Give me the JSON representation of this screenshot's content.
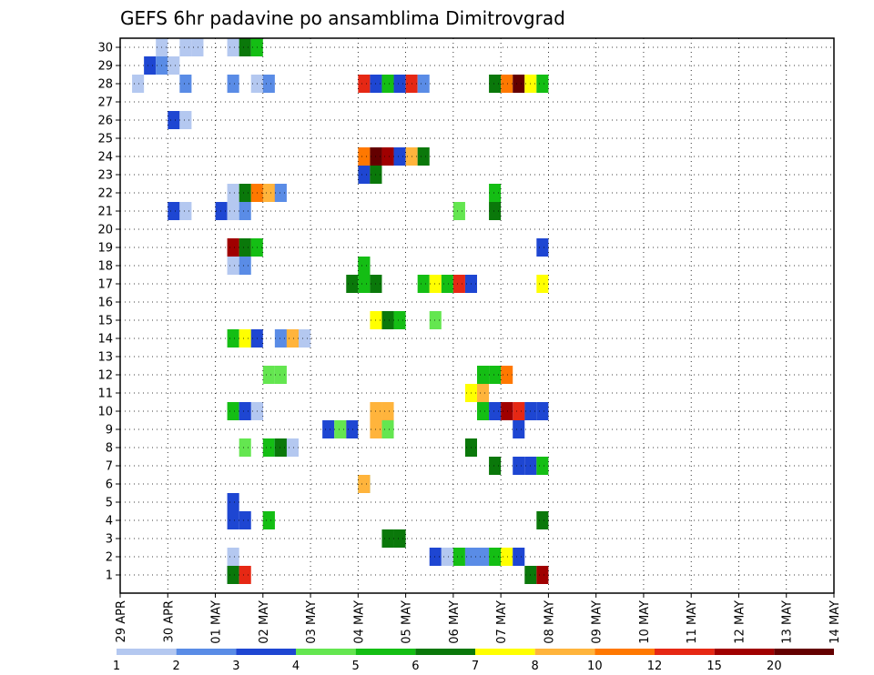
{
  "chart_data": {
    "type": "heatmap",
    "title": "GEFS 6hr padavine po ansamblima Dimitrovgrad",
    "x_tick_labels": [
      "29 APR",
      "30 APR",
      "01 MAY",
      "02 MAY",
      "03 MAY",
      "04 MAY",
      "05 MAY",
      "06 MAY",
      "07 MAY",
      "08 MAY",
      "09 MAY",
      "10 MAY",
      "11 MAY",
      "12 MAY",
      "13 MAY",
      "14 MAY"
    ],
    "y_members": [
      1,
      2,
      3,
      4,
      5,
      6,
      7,
      8,
      9,
      10,
      11,
      12,
      13,
      14,
      15,
      16,
      17,
      18,
      19,
      20,
      21,
      22,
      23,
      24,
      25,
      26,
      27,
      28,
      29,
      30
    ],
    "time_steps_per_day": 4,
    "grid": true,
    "legend": {
      "placement": "bottom",
      "labels": [
        "1",
        "2",
        "3",
        "4",
        "5",
        "6",
        "7",
        "8",
        "10",
        "12",
        "15",
        "20"
      ],
      "colors": [
        "#b4c8f0",
        "#5a8ce6",
        "#1e46d2",
        "#64e650",
        "#14be14",
        "#0a780a",
        "#ffff00",
        "#ffb43c",
        "#ff7800",
        "#e62814",
        "#a00000",
        "#640000"
      ]
    },
    "precip_cells": [
      {
        "step": 3,
        "member": 30,
        "level": 1
      },
      {
        "step": 5,
        "member": 30,
        "level": 1
      },
      {
        "step": 6,
        "member": 30,
        "level": 1
      },
      {
        "step": 9,
        "member": 30,
        "level": 1
      },
      {
        "step": 10,
        "member": 30,
        "level": 1
      },
      {
        "step": 10,
        "member": 30,
        "level": 6
      },
      {
        "step": 11,
        "member": 30,
        "level": 5
      },
      {
        "step": 2,
        "member": 29,
        "level": 3
      },
      {
        "step": 3,
        "member": 29,
        "level": 2
      },
      {
        "step": 4,
        "member": 29,
        "level": 1
      },
      {
        "step": 1,
        "member": 28,
        "level": 1
      },
      {
        "step": 5,
        "member": 28,
        "level": 2
      },
      {
        "step": 9,
        "member": 28,
        "level": 2
      },
      {
        "step": 11,
        "member": 28,
        "level": 1
      },
      {
        "step": 12,
        "member": 28,
        "level": 2
      },
      {
        "step": 4,
        "member": 26,
        "level": 3
      },
      {
        "step": 5,
        "member": 26,
        "level": 1
      },
      {
        "step": 4,
        "member": 21,
        "level": 3
      },
      {
        "step": 5,
        "member": 21,
        "level": 1
      },
      {
        "step": 9,
        "member": 22,
        "level": 1
      },
      {
        "step": 10,
        "member": 22,
        "level": 6
      },
      {
        "step": 11,
        "member": 22,
        "level": 5
      },
      {
        "step": 11,
        "member": 22,
        "level": 9
      },
      {
        "step": 12,
        "member": 22,
        "level": 10
      },
      {
        "step": 12,
        "member": 22,
        "level": 8
      },
      {
        "step": 13,
        "member": 22,
        "level": 2
      },
      {
        "step": 8,
        "member": 21,
        "level": 3
      },
      {
        "step": 9,
        "member": 21,
        "level": 1
      },
      {
        "step": 10,
        "member": 21,
        "level": 2
      },
      {
        "step": 9,
        "member": 19,
        "level": 11
      },
      {
        "step": 10,
        "member": 19,
        "level": 10
      },
      {
        "step": 10,
        "member": 19,
        "level": 6
      },
      {
        "step": 11,
        "member": 19,
        "level": 5
      },
      {
        "step": 9,
        "member": 18,
        "level": 1
      },
      {
        "step": 10,
        "member": 18,
        "level": 2
      },
      {
        "step": 9,
        "member": 14,
        "level": 5
      },
      {
        "step": 10,
        "member": 14,
        "level": 1
      },
      {
        "step": 10,
        "member": 14,
        "level": 7
      },
      {
        "step": 11,
        "member": 14,
        "level": 3
      },
      {
        "step": 13,
        "member": 14,
        "level": 2
      },
      {
        "step": 14,
        "member": 14,
        "level": 9
      },
      {
        "step": 14,
        "member": 14,
        "level": 8
      },
      {
        "step": 15,
        "member": 14,
        "level": 3
      },
      {
        "step": 15,
        "member": 14,
        "level": 1
      },
      {
        "step": 12,
        "member": 12,
        "level": 4
      },
      {
        "step": 13,
        "member": 12,
        "level": 4
      },
      {
        "step": 9,
        "member": 10,
        "level": 5
      },
      {
        "step": 10,
        "member": 10,
        "level": 2
      },
      {
        "step": 10,
        "member": 10,
        "level": 3
      },
      {
        "step": 11,
        "member": 10,
        "level": 3
      },
      {
        "step": 11,
        "member": 10,
        "level": 1
      },
      {
        "step": 10,
        "member": 8,
        "level": 4
      },
      {
        "step": 12,
        "member": 8,
        "level": 5
      },
      {
        "step": 13,
        "member": 8,
        "level": 3
      },
      {
        "step": 13,
        "member": 8,
        "level": 6
      },
      {
        "step": 14,
        "member": 8,
        "level": 1
      },
      {
        "step": 9,
        "member": 5,
        "level": 3
      },
      {
        "step": 9,
        "member": 4,
        "level": 3
      },
      {
        "step": 10,
        "member": 4,
        "level": 3
      },
      {
        "step": 12,
        "member": 4,
        "level": 4
      },
      {
        "step": 12,
        "member": 4,
        "level": 5
      },
      {
        "step": 9,
        "member": 2,
        "level": 1
      },
      {
        "step": 9,
        "member": 1,
        "level": 3
      },
      {
        "step": 9,
        "member": 1,
        "level": 6
      },
      {
        "step": 10,
        "member": 1,
        "level": 10
      },
      {
        "step": 17,
        "member": 9,
        "level": 3
      },
      {
        "step": 18,
        "member": 9,
        "level": 4
      },
      {
        "step": 19,
        "member": 9,
        "level": 7
      },
      {
        "step": 19,
        "member": 9,
        "level": 3
      },
      {
        "step": 20,
        "member": 6,
        "level": 6
      },
      {
        "step": 20,
        "member": 6,
        "level": 8
      },
      {
        "step": 19,
        "member": 17,
        "level": 6
      },
      {
        "step": 20,
        "member": 17,
        "level": 5
      },
      {
        "step": 21,
        "member": 17,
        "level": 6
      },
      {
        "step": 20,
        "member": 18,
        "level": 6
      },
      {
        "step": 20,
        "member": 18,
        "level": 5
      },
      {
        "step": 20,
        "member": 23,
        "level": 7
      },
      {
        "step": 20,
        "member": 23,
        "level": 3
      },
      {
        "step": 21,
        "member": 23,
        "level": 6
      },
      {
        "step": 20,
        "member": 24,
        "level": 9
      },
      {
        "step": 21,
        "member": 24,
        "level": 12
      },
      {
        "step": 22,
        "member": 24,
        "level": 11
      },
      {
        "step": 23,
        "member": 24,
        "level": 3
      },
      {
        "step": 24,
        "member": 24,
        "level": 8
      },
      {
        "step": 25,
        "member": 24,
        "level": 6
      },
      {
        "step": 20,
        "member": 28,
        "level": 10
      },
      {
        "step": 21,
        "member": 28,
        "level": 3
      },
      {
        "step": 22,
        "member": 28,
        "level": 5
      },
      {
        "step": 23,
        "member": 28,
        "level": 3
      },
      {
        "step": 24,
        "member": 28,
        "level": 10
      },
      {
        "step": 25,
        "member": 28,
        "level": 2
      },
      {
        "step": 25,
        "member": 17,
        "level": 5
      },
      {
        "step": 26,
        "member": 17,
        "level": 7
      },
      {
        "step": 27,
        "member": 17,
        "level": 5
      },
      {
        "step": 28,
        "member": 17,
        "level": 10
      },
      {
        "step": 29,
        "member": 17,
        "level": 3
      },
      {
        "step": 21,
        "member": 15,
        "level": 7
      },
      {
        "step": 22,
        "member": 15,
        "level": 6
      },
      {
        "step": 23,
        "member": 15,
        "level": 5
      },
      {
        "step": 26,
        "member": 15,
        "level": 4
      },
      {
        "step": 21,
        "member": 10,
        "level": 8
      },
      {
        "step": 22,
        "member": 10,
        "level": 8
      },
      {
        "step": 21,
        "member": 9,
        "level": 8
      },
      {
        "step": 22,
        "member": 9,
        "level": 4
      },
      {
        "step": 22,
        "member": 3,
        "level": 6
      },
      {
        "step": 23,
        "member": 3,
        "level": 6
      },
      {
        "step": 31,
        "member": 28,
        "level": 6
      },
      {
        "step": 32,
        "member": 28,
        "level": 9
      },
      {
        "step": 33,
        "member": 28,
        "level": 12
      },
      {
        "step": 34,
        "member": 28,
        "level": 7
      },
      {
        "step": 35,
        "member": 28,
        "level": 5
      },
      {
        "step": 29,
        "member": 11,
        "level": 7
      },
      {
        "step": 30,
        "member": 11,
        "level": 8
      },
      {
        "step": 30,
        "member": 10,
        "level": 5
      },
      {
        "step": 31,
        "member": 10,
        "level": 3
      },
      {
        "step": 32,
        "member": 10,
        "level": 11
      },
      {
        "step": 33,
        "member": 10,
        "level": 3
      },
      {
        "step": 30,
        "member": 12,
        "level": 5
      },
      {
        "step": 31,
        "member": 12,
        "level": 5
      },
      {
        "step": 32,
        "member": 12,
        "level": 9
      },
      {
        "step": 26,
        "member": 2,
        "level": 3
      },
      {
        "step": 27,
        "member": 2,
        "level": 1
      },
      {
        "step": 28,
        "member": 2,
        "level": 5
      },
      {
        "step": 29,
        "member": 2,
        "level": 2
      },
      {
        "step": 30,
        "member": 2,
        "level": 2
      },
      {
        "step": 31,
        "member": 2,
        "level": 5
      },
      {
        "step": 32,
        "member": 2,
        "level": 7
      },
      {
        "step": 33,
        "member": 2,
        "level": 3
      },
      {
        "step": 34,
        "member": 1,
        "level": 6
      },
      {
        "step": 35,
        "member": 1,
        "level": 11
      },
      {
        "step": 31,
        "member": 7,
        "level": 6
      },
      {
        "step": 33,
        "member": 7,
        "level": 3
      },
      {
        "step": 34,
        "member": 7,
        "level": 3
      },
      {
        "step": 35,
        "member": 7,
        "level": 5
      },
      {
        "step": 35,
        "member": 4,
        "level": 6
      },
      {
        "step": 29,
        "member": 8,
        "level": 6
      },
      {
        "step": 33,
        "member": 9,
        "level": 3
      },
      {
        "step": 34,
        "member": 10,
        "level": 3
      },
      {
        "step": 35,
        "member": 10,
        "level": 3
      },
      {
        "step": 33,
        "member": 10,
        "level": 10
      },
      {
        "step": 28,
        "member": 21,
        "level": 4
      },
      {
        "step": 31,
        "member": 21,
        "level": 6
      },
      {
        "step": 31,
        "member": 22,
        "level": 5
      },
      {
        "step": 35,
        "member": 17,
        "level": 7
      },
      {
        "step": 35,
        "member": 19,
        "level": 3
      }
    ]
  }
}
